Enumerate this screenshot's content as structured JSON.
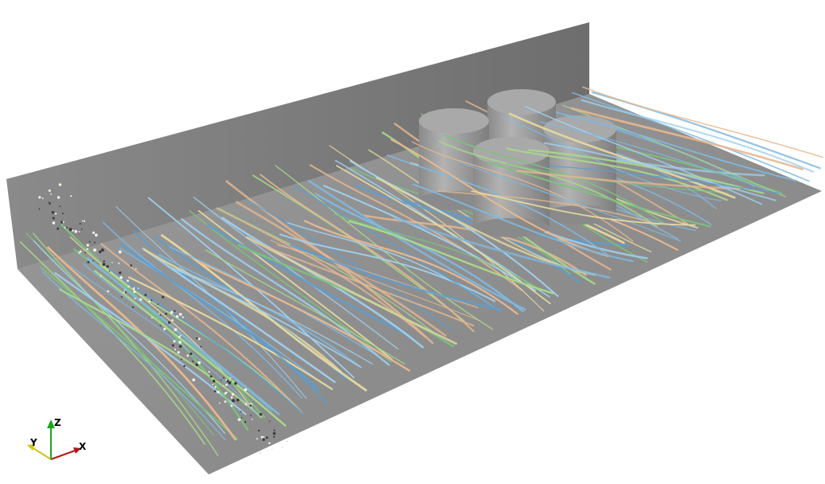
{
  "axes_triad": {
    "x_label": "X",
    "y_label": "Y",
    "z_label": "Z",
    "x_color": "#b01818",
    "y_color": "#d4c21a",
    "z_color": "#1aa81a"
  },
  "scene": {
    "background": "#ffffff",
    "floor_color": "#8f8f8f",
    "wall_color": "#7d7d7d",
    "cylinder_color": "#9b9b9b",
    "cylinder_top_color": "#a8a8a8",
    "streamline_palette": [
      "#7fb8e0",
      "#5a9fd4",
      "#9fd0ef",
      "#7cc27c",
      "#a8d88a",
      "#e6d9a0",
      "#e8b890"
    ]
  }
}
